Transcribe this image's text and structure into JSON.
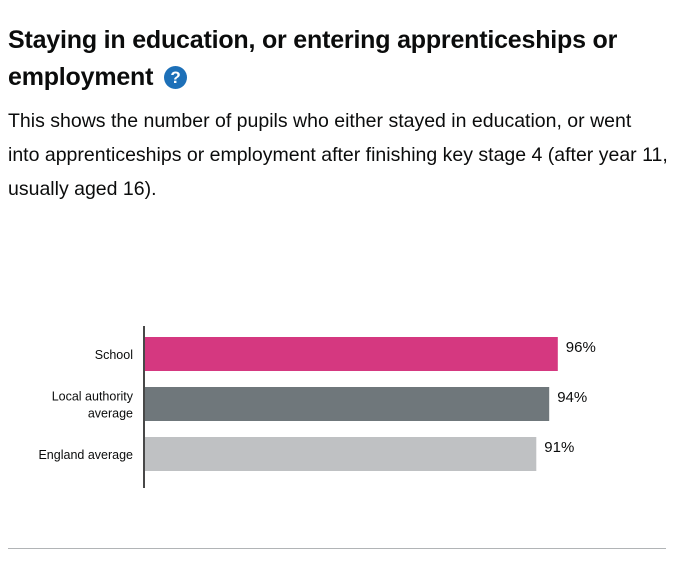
{
  "section": {
    "title": "Staying in education, or entering apprenticeships or employment",
    "help_icon": "?",
    "description": "This shows the number of pupils who either stayed in education, or went into apprenticeships or employment after finishing key stage 4 (after year 11, usually aged 16)."
  },
  "colors": {
    "school": "#d53880",
    "local_authority": "#6f777b",
    "england": "#bfc1c3",
    "help_icon": "#1d70b8"
  },
  "chart_data": {
    "type": "bar",
    "orientation": "horizontal",
    "categories": [
      [
        "School"
      ],
      [
        "Local authority",
        "average"
      ],
      [
        "England average"
      ]
    ],
    "values": [
      96,
      94,
      91
    ],
    "value_labels": [
      "96%",
      "94%",
      "91%"
    ],
    "unit": "%",
    "xlim": [
      0,
      100
    ],
    "title": "",
    "xlabel": "",
    "ylabel": "",
    "grid": false
  }
}
